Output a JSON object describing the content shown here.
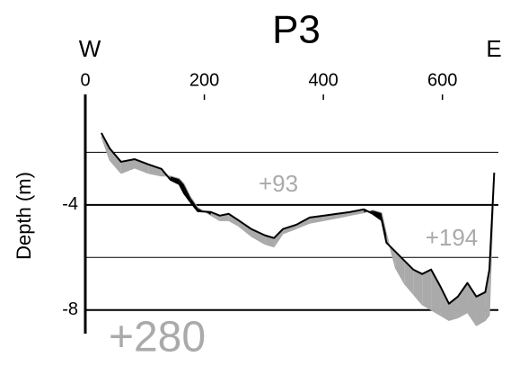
{
  "chart_data": {
    "type": "profile",
    "title": "P3",
    "y_label": "Depth (m)",
    "annotations": [
      "W",
      "E",
      "+93",
      "+194",
      "+280"
    ],
    "x": [
      27,
      41,
      60,
      83,
      106,
      128,
      143,
      158,
      166,
      177,
      189,
      211,
      226,
      241,
      257,
      279,
      302,
      317,
      332,
      355,
      377,
      400,
      423,
      445,
      468,
      483,
      498,
      506,
      521,
      536,
      551,
      566,
      581,
      596,
      611,
      626,
      642,
      657,
      672,
      679,
      687
    ],
    "series": [
      {
        "color": "#000000",
        "values": [
          -1.26,
          -1.85,
          -2.36,
          -2.26,
          -2.46,
          -2.63,
          -3.04,
          -3.21,
          -3.56,
          -3.9,
          -4.24,
          -4.27,
          -4.41,
          -4.34,
          -4.58,
          -4.92,
          -5.16,
          -5.26,
          -4.92,
          -4.75,
          -4.48,
          -4.41,
          -4.34,
          -4.27,
          -4.17,
          -4.34,
          -4.58,
          -5.44,
          -5.78,
          -6.12,
          -6.46,
          -6.63,
          -6.46,
          -7.08,
          -7.76,
          -7.49,
          -6.97,
          -7.49,
          -7.32,
          -6.46,
          -2.77
        ]
      },
      {
        "color": "#aaaaaa",
        "values": [
          -1.4,
          -2.3,
          -2.8,
          -2.6,
          -2.8,
          -2.9,
          -2.9,
          -3.0,
          -3.2,
          -3.7,
          -4.1,
          -4.4,
          -4.6,
          -4.6,
          -4.8,
          -5.2,
          -5.5,
          -5.6,
          -5.1,
          -4.9,
          -4.7,
          -4.6,
          -4.5,
          -4.4,
          -4.3,
          -4.2,
          -4.3,
          -5.1,
          -6.4,
          -7.0,
          -7.4,
          -7.8,
          -8.0,
          -8.2,
          -8.4,
          -8.3,
          -8.1,
          -8.6,
          -8.4,
          -8.2,
          -2.9
        ]
      }
    ],
    "xlim": [
      0,
      694
    ],
    "xticks": [
      0,
      200,
      400,
      600
    ],
    "ylim": [
      -8.9,
      0
    ],
    "yticks": [
      -4,
      -8
    ],
    "minor_gridlines": [
      -2,
      -6
    ]
  }
}
